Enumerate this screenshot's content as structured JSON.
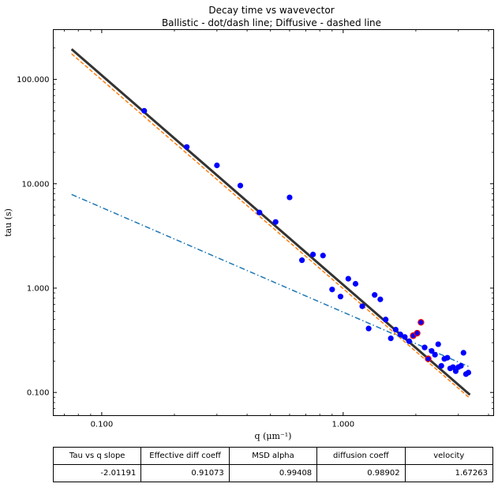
{
  "chart_data": {
    "type": "scatter",
    "title": "Decay time vs wavevector",
    "subtitle": "Ballistic - dot/dash line; Diffusive - dashed line",
    "xlabel": "q (μm⁻¹)",
    "ylabel": "tau (s)",
    "xscale": "log",
    "yscale": "log",
    "xlim": [
      0.063,
      4.2
    ],
    "ylim": [
      0.06,
      300
    ],
    "xticks": [
      0.1,
      1.0
    ],
    "xtick_labels": [
      "0.100",
      "1.000"
    ],
    "yticks": [
      0.1,
      1.0,
      10.0,
      100.0
    ],
    "ytick_labels": [
      "0.100",
      "1.000",
      "10.000",
      "100.000"
    ],
    "grid": false,
    "colors": {
      "points": "#0000ff",
      "highlight": "#ff0000",
      "fit": "#333333",
      "diffusive": "#ff7f0e",
      "ballistic": "#1f77b4"
    },
    "series": [
      {
        "kind": "scatter",
        "x": [
          0.15,
          0.225,
          0.3,
          0.375,
          0.45,
          0.525,
          0.6,
          0.675,
          0.75,
          0.825,
          0.9,
          0.975,
          1.05,
          1.125,
          1.2,
          1.275,
          1.35,
          1.425,
          1.5,
          1.575,
          1.65,
          1.725,
          1.8,
          1.875,
          1.95,
          2.025,
          2.1,
          2.175,
          2.25,
          2.325,
          2.4,
          2.475,
          2.55,
          2.625,
          2.7,
          2.775,
          2.85,
          2.925,
          3.0,
          3.075,
          3.15,
          3.225,
          3.3
        ],
        "y": [
          50.0,
          22.5,
          15.0,
          9.6,
          5.3,
          4.3,
          7.4,
          1.85,
          2.1,
          2.05,
          0.97,
          0.83,
          1.23,
          1.1,
          0.67,
          0.41,
          0.86,
          0.78,
          0.5,
          0.33,
          0.4,
          0.36,
          0.34,
          0.31,
          0.35,
          0.37,
          0.47,
          0.27,
          0.21,
          0.25,
          0.23,
          0.29,
          0.18,
          0.21,
          0.215,
          0.17,
          0.175,
          0.16,
          0.175,
          0.18,
          0.24,
          0.15,
          0.155
        ]
      },
      {
        "kind": "line",
        "style": "solid",
        "x": [
          0.075,
          3.35
        ],
        "y": [
          195.0,
          0.095
        ]
      },
      {
        "kind": "line",
        "style": "dashed",
        "x": [
          0.075,
          3.35
        ],
        "y": [
          176.0,
          0.088
        ]
      },
      {
        "kind": "line",
        "style": "dashdot",
        "x": [
          0.075,
          3.35
        ],
        "y": [
          7.9,
          0.175
        ]
      }
    ],
    "highlight_indices": [
      24,
      25,
      26,
      28
    ]
  },
  "table": {
    "headers": [
      "Tau vs q slope",
      "Effective diff coeff",
      "MSD alpha",
      "diffusion coeff",
      "velocity"
    ],
    "values": [
      "-2.01191",
      "0.91073",
      "0.99408",
      "0.98902",
      "1.67263"
    ]
  }
}
